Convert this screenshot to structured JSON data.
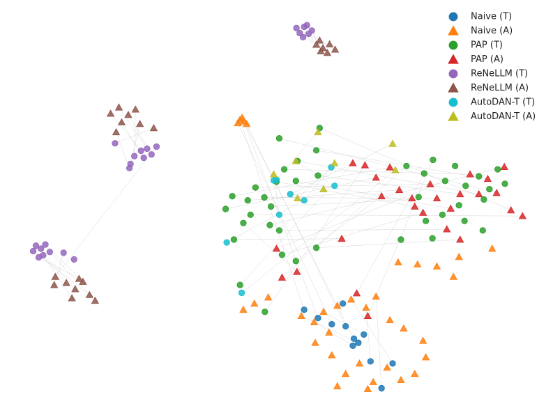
{
  "chart_data": {
    "type": "scatter",
    "xlim": [
      0,
      100
    ],
    "ylim": [
      0,
      100
    ],
    "legend": "upper right",
    "series": [
      {
        "name": "Naive (T)",
        "color": "#1f77b4",
        "marker": "circle",
        "x": [
          55.0,
          57.5,
          60.0,
          62.5,
          64.0,
          64.8,
          63.8,
          65.8,
          62.0,
          71.0,
          67.0,
          69.0
        ],
        "y": [
          25.0,
          23.0,
          21.5,
          21.0,
          18.0,
          17.0,
          16.3,
          19.0,
          26.5,
          12.0,
          12.5,
          6.0
        ]
      },
      {
        "name": "Naive (A)",
        "color": "#ff7f0e",
        "marker": "triangle",
        "x": [
          43.4,
          44.1,
          43.0,
          44.6,
          43.8,
          54.5,
          56.8,
          58.5,
          61.0,
          63.5,
          66.2,
          68.0,
          70.5,
          73.0,
          76.5,
          57.0,
          60.0,
          62.5,
          65.0,
          67.5,
          70.0,
          72.5,
          75.0,
          61.0,
          66.5,
          77.0,
          59.5,
          46.0,
          48.5,
          44.0,
          72.0,
          75.5,
          79.0,
          83.0,
          89.0,
          82.0
        ],
        "y": [
          71.0,
          70.6,
          70.2,
          70.0,
          71.5,
          23.5,
          22.0,
          24.5,
          26.0,
          27.5,
          25.5,
          28.2,
          22.5,
          20.5,
          17.5,
          17.0,
          14.0,
          9.5,
          12.0,
          7.5,
          11.0,
          8.0,
          9.5,
          6.5,
          5.8,
          13.5,
          19.5,
          26.5,
          28.0,
          25.0,
          36.5,
          36.0,
          35.5,
          37.8,
          39.8,
          33.0
        ]
      },
      {
        "name": "PAP (T)",
        "color": "#2ca02c",
        "marker": "circle",
        "x": [
          40.8,
          42.0,
          44.8,
          47.8,
          50.0,
          46.2,
          49.0,
          53.5,
          57.5,
          51.4,
          53.8,
          57.2,
          50.5,
          57.8,
          45.3,
          48.8,
          50.5,
          57.2,
          51.0,
          43.4,
          47.9,
          53.5,
          42.3,
          44.0,
          73.5,
          76.7,
          78.3,
          80.5,
          82.3,
          84.2,
          86.6,
          88.5,
          90.0,
          91.3,
          87.5,
          83.0,
          80.0,
          77.0,
          78.2,
          72.5,
          75.7,
          84.0,
          87.3
        ],
        "y": [
          49.4,
          52.5,
          51.5,
          52.2,
          56.0,
          54.6,
          50.0,
          56.2,
          57.5,
          59.0,
          61.0,
          63.6,
          66.5,
          69.0,
          48.0,
          45.5,
          44.2,
          40.0,
          38.3,
          31.0,
          24.5,
          36.8,
          42.0,
          46.0,
          59.8,
          58.0,
          61.3,
          56.2,
          59.8,
          55.0,
          57.3,
          54.2,
          59.0,
          55.5,
          51.7,
          50.3,
          48.0,
          46.5,
          42.3,
          42.0,
          52.3,
          46.5,
          44.2
        ]
      },
      {
        "name": "PAP (A)",
        "color": "#d62728",
        "marker": "triangle",
        "x": [
          68.0,
          70.5,
          72.2,
          74.5,
          75.0,
          77.8,
          79.0,
          81.5,
          83.2,
          85.0,
          86.6,
          88.2,
          89.8,
          92.4,
          94.5,
          91.2,
          80.8,
          83.2,
          76.5,
          63.8,
          66.0,
          69.0,
          61.8,
          53.7,
          51.0,
          64.5,
          66.5,
          50.0
        ],
        "y": [
          57.0,
          59.5,
          54.0,
          52.0,
          50.0,
          55.4,
          52.0,
          49.5,
          53.0,
          57.8,
          53.0,
          56.7,
          53.3,
          49.1,
          47.7,
          59.6,
          44.5,
          42.0,
          48.5,
          60.5,
          60.0,
          52.5,
          42.2,
          34.2,
          32.8,
          29.0,
          23.5,
          39.8
        ]
      },
      {
        "name": "ReNeLLM (T)",
        "color": "#9467bd",
        "marker": "circle",
        "x": [
          55.0,
          54.2,
          55.8,
          53.6,
          56.4,
          54.8,
          55.5,
          25.5,
          26.6,
          27.4,
          24.3,
          26.0,
          23.6,
          20.8,
          23.4,
          28.3,
          6.5,
          7.4,
          8.2,
          6.0,
          7.8,
          9.0,
          7.0,
          11.5,
          13.4
        ],
        "y": [
          93.5,
          92.0,
          91.8,
          93.2,
          92.6,
          91.0,
          93.9,
          63.5,
          64.0,
          62.6,
          62.2,
          61.8,
          60.3,
          65.3,
          59.3,
          64.5,
          40.5,
          39.8,
          40.8,
          39.2,
          38.2,
          39.0,
          37.7,
          38.8,
          37.2
        ]
      },
      {
        "name": "ReNeLLM (A)",
        "color": "#8c564b",
        "marker": "triangle",
        "x": [
          57.2,
          58.4,
          59.6,
          60.6,
          58.0,
          59.2,
          57.8,
          20.0,
          21.5,
          23.2,
          24.5,
          22.0,
          25.3,
          27.8,
          21.0,
          10.0,
          12.0,
          13.6,
          15.0,
          16.2,
          13.0,
          17.2,
          14.3,
          9.8
        ],
        "y": [
          89.2,
          88.4,
          89.3,
          88.0,
          87.6,
          87.2,
          90.2,
          72.5,
          74.0,
          72.2,
          73.5,
          70.4,
          70.0,
          69.0,
          68.0,
          33.0,
          31.5,
          30.0,
          31.8,
          28.6,
          27.8,
          27.2,
          32.5,
          31.0
        ]
      },
      {
        "name": "AutoDAN-T (T)",
        "color": "#17becf",
        "marker": "circle",
        "x": [
          50.0,
          52.5,
          55.0,
          60.5,
          59.9,
          50.5,
          41.0,
          43.7,
          49.5
        ],
        "y": [
          56.5,
          53.0,
          51.5,
          55.0,
          59.5,
          48.0,
          41.3,
          29.1,
          56.3
        ]
      },
      {
        "name": "AutoDAN-T (A)",
        "color": "#bcbd22",
        "marker": "triangle",
        "x": [
          57.5,
          71.0,
          60.5,
          53.5,
          53.8,
          49.5,
          58.5,
          71.5
        ],
        "y": [
          68.0,
          65.2,
          60.5,
          61.0,
          52.0,
          57.8,
          54.2,
          58.8
        ]
      }
    ]
  }
}
